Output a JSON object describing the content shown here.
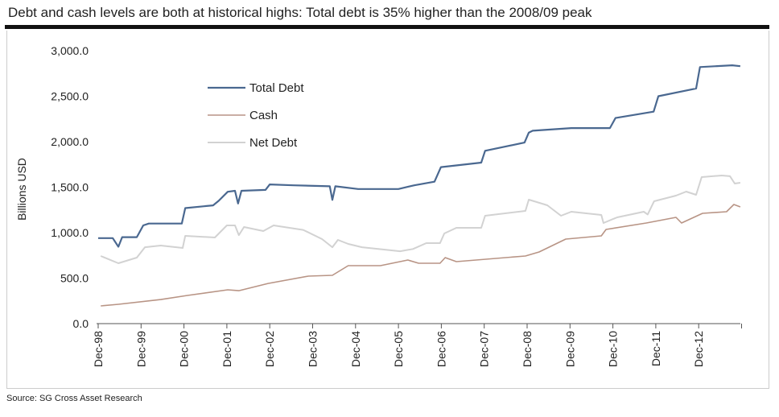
{
  "title": "Debt and cash levels are both at historical highs: Total debt is 35% higher than the 2008/09 peak",
  "source": "Source: SG Cross Asset Research",
  "chart_data": {
    "type": "line",
    "ylabel": "Billions USD",
    "xlabel": "",
    "ylim": [
      0,
      3000
    ],
    "xlim": [
      1998.92,
      2013.92
    ],
    "yticks": [
      "0.0",
      "500.0",
      "1,000.0",
      "1,500.0",
      "2,000.0",
      "2,500.0",
      "3,000.0"
    ],
    "ytick_values": [
      0,
      500,
      1000,
      1500,
      2000,
      2500,
      3000
    ],
    "xticks": [
      "Dec-98",
      "Dec-99",
      "Dec-00",
      "Dec-01",
      "Dec-02",
      "Dec-03",
      "Dec-04",
      "Dec-05",
      "Dec-06",
      "Dec-07",
      "Dec-08",
      "Dec-09",
      "Dec-10",
      "Dec-11",
      "Dec-12"
    ],
    "xtick_values": [
      1998.92,
      1999.92,
      2000.92,
      2001.92,
      2002.92,
      2003.92,
      2004.92,
      2005.92,
      2006.92,
      2007.92,
      2008.92,
      2009.92,
      2010.92,
      2011.92,
      2012.92
    ],
    "legend_position": "top-left",
    "grid": false,
    "series": [
      {
        "name": "Total Debt",
        "color": "#4a6890",
        "width": 2.2,
        "x": [
          1998.92,
          1999.26,
          1999.39,
          1999.48,
          1999.82,
          1999.97,
          2000.1,
          2000.87,
          2000.95,
          2001.6,
          2001.73,
          2001.94,
          2002.11,
          2002.18,
          2002.26,
          2002.82,
          2002.92,
          2003.48,
          2004.32,
          2004.38,
          2004.45,
          2004.98,
          2005.92,
          2006.29,
          2006.76,
          2006.91,
          2007.85,
          2007.94,
          2008.86,
          2008.96,
          2009.05,
          2009.95,
          2010.85,
          2010.98,
          2011.87,
          2011.98,
          2012.86,
          2012.95,
          2013.7,
          2013.89
        ],
        "y": [
          940,
          940,
          845,
          950,
          950,
          1080,
          1100,
          1100,
          1270,
          1300,
          1350,
          1450,
          1460,
          1320,
          1460,
          1470,
          1530,
          1520,
          1510,
          1360,
          1510,
          1480,
          1480,
          1520,
          1560,
          1720,
          1770,
          1900,
          1990,
          2100,
          2120,
          2150,
          2150,
          2260,
          2330,
          2500,
          2585,
          2820,
          2840,
          2830
        ]
      },
      {
        "name": "Cash",
        "color": "#b89485",
        "width": 1.6,
        "x": [
          1998.98,
          1999.39,
          2000.38,
          2001.0,
          2001.94,
          2002.2,
          2002.88,
          2003.82,
          2004.38,
          2004.75,
          2005.5,
          2006.14,
          2006.39,
          2006.89,
          2007.01,
          2007.27,
          2008.88,
          2009.2,
          2009.82,
          2010.65,
          2010.76,
          2011.7,
          2012.39,
          2012.52,
          2013.01,
          2013.57,
          2013.74,
          2013.89
        ],
        "y": [
          195,
          212,
          265,
          310,
          372,
          362,
          442,
          522,
          531,
          637,
          637,
          699,
          664,
          664,
          726,
          681,
          743,
          788,
          929,
          965,
          1035,
          1106,
          1168,
          1106,
          1212,
          1230,
          1310,
          1283
        ]
      },
      {
        "name": "Net Debt",
        "color": "#d2d2d2",
        "width": 2,
        "x": [
          1998.98,
          1999.39,
          1999.82,
          2000.01,
          2000.38,
          2000.89,
          2000.95,
          2001.64,
          2001.92,
          2002.11,
          2002.2,
          2002.32,
          2002.77,
          2003.01,
          2003.7,
          2004.14,
          2004.38,
          2004.51,
          2004.75,
          2005.07,
          2005.96,
          2006.26,
          2006.57,
          2006.89,
          2006.99,
          2007.27,
          2007.85,
          2007.94,
          2008.88,
          2008.96,
          2009.39,
          2009.71,
          2009.95,
          2010.65,
          2010.7,
          2011.02,
          2011.64,
          2011.73,
          2011.88,
          2012.39,
          2012.63,
          2012.86,
          2012.99,
          2013.46,
          2013.65,
          2013.76,
          2013.89
        ],
        "y": [
          743,
          664,
          726,
          840,
          858,
          832,
          965,
          947,
          1080,
          1080,
          973,
          1062,
          1018,
          1080,
          1030,
          929,
          840,
          920,
          876,
          840,
          796,
          820,
          885,
          885,
          991,
          1053,
          1053,
          1186,
          1239,
          1363,
          1301,
          1186,
          1230,
          1195,
          1106,
          1168,
          1230,
          1200,
          1345,
          1407,
          1451,
          1416,
          1611,
          1628,
          1620,
          1540,
          1549
        ]
      }
    ]
  }
}
